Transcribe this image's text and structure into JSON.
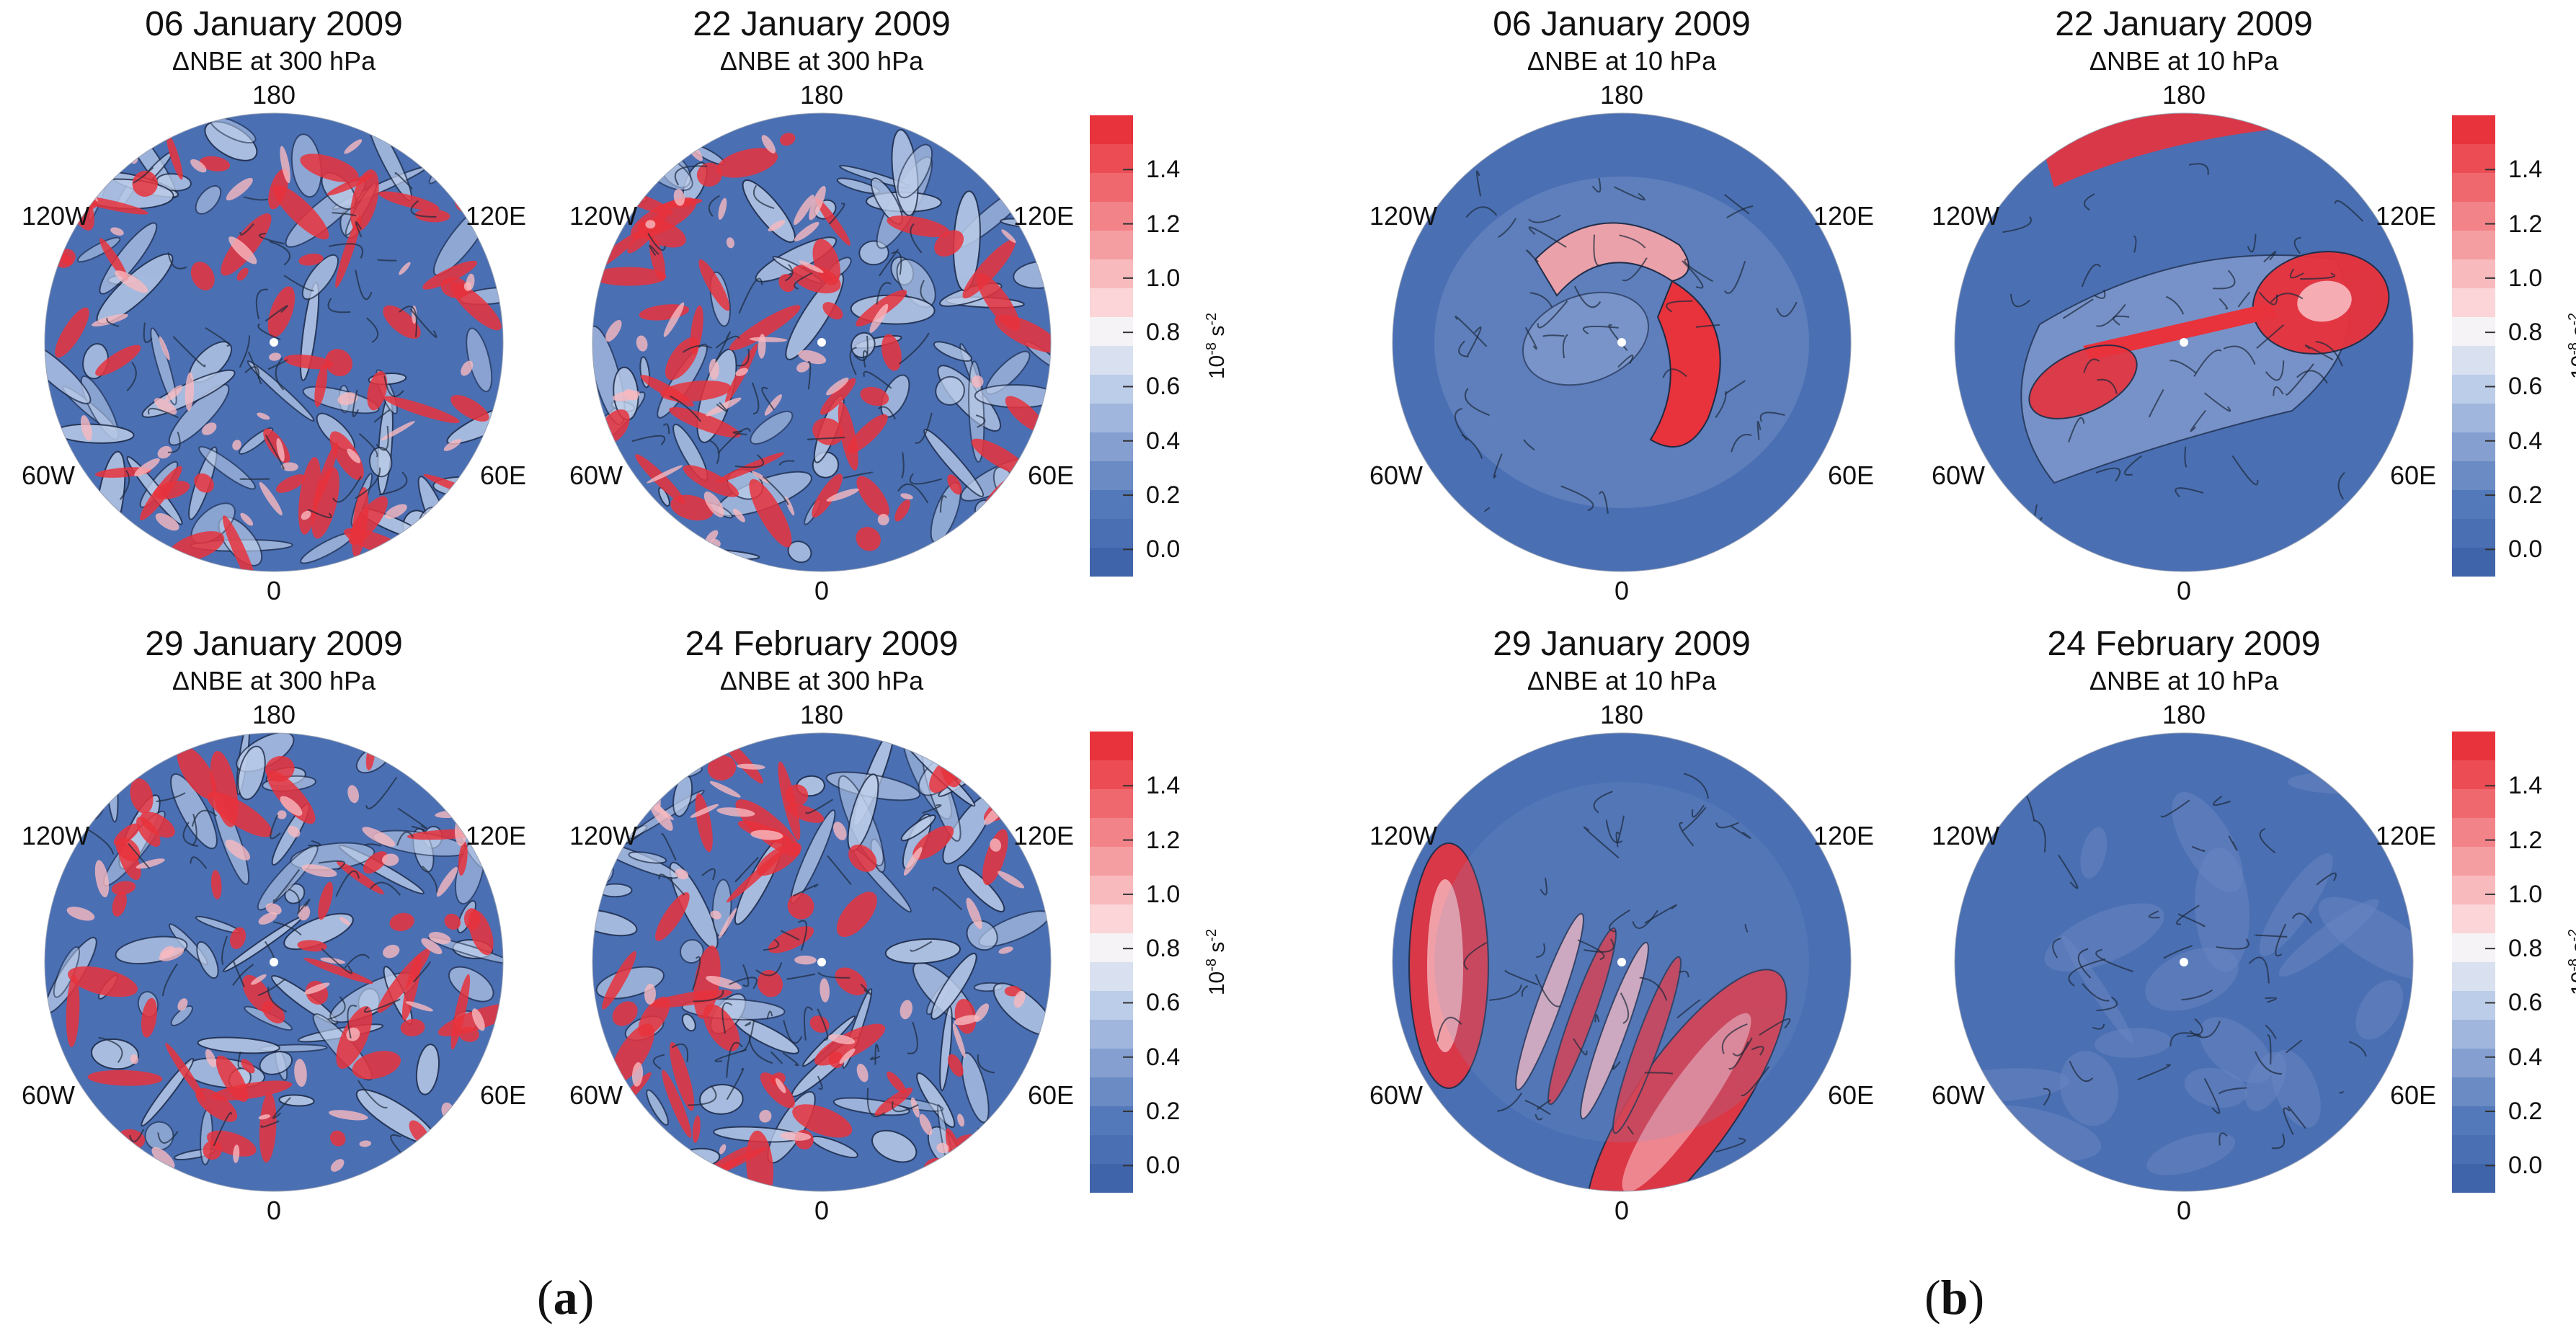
{
  "colors": {
    "low": "#4a6fb3",
    "mid": "#bccde9",
    "high": "#e8323c",
    "land": "#1c2a3a"
  },
  "panels": [
    {
      "title": "06 January 2009",
      "subtitle": "ΔNBE at 300 hPa",
      "pattern": "turbulent"
    },
    {
      "title": "22 January 2009",
      "subtitle": "ΔNBE at 300 hPa",
      "pattern": "turbulent"
    },
    {
      "title": "29 January 2009",
      "subtitle": "ΔNBE at 300 hPa",
      "pattern": "turbulent"
    },
    {
      "title": "24 February 2009",
      "subtitle": "ΔNBE at 300 hPa",
      "pattern": "turbulent"
    },
    {
      "title": "06 January 2009",
      "subtitle": "ΔNBE at 10 hPa",
      "pattern": "crescent"
    },
    {
      "title": "22 January 2009",
      "subtitle": "ΔNBE at 10 hPa",
      "pattern": "split"
    },
    {
      "title": "29 January 2009",
      "subtitle": "ΔNBE at 10 hPa",
      "pattern": "streamers"
    },
    {
      "title": "24 February 2009",
      "subtitle": "ΔNBE at 10 hPa",
      "pattern": "calm"
    }
  ],
  "lon_labels": {
    "top": "180",
    "bottom": "0",
    "upper_left": "120W",
    "upper_right": "120E",
    "lower_left": "60W",
    "lower_right": "60E"
  },
  "colorbar": {
    "ticks": [
      "1.4",
      "1.2",
      "1.0",
      "0.8",
      "0.6",
      "0.4",
      "0.2",
      "0.0"
    ],
    "unit_base": "10",
    "unit_exp1": "-8",
    "unit_mid": " s",
    "unit_exp2": "-2",
    "range": [
      -0.1,
      1.6
    ]
  },
  "group_labels": {
    "a": "a",
    "b": "b"
  }
}
